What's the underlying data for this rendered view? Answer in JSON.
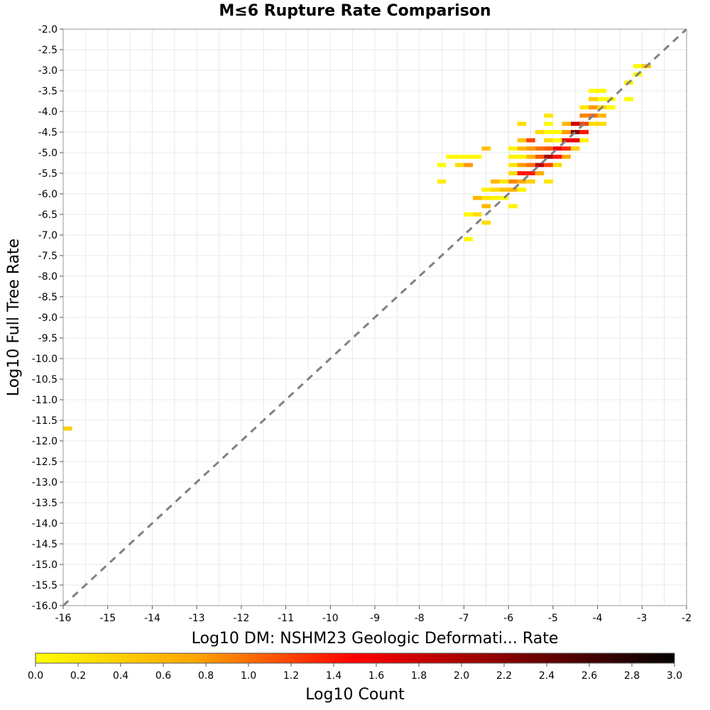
{
  "chart_data": {
    "type": "heatmap",
    "title": "M≤6 Rupture Rate Comparison",
    "xlabel": "Log10 DM: NSHM23 Geologic Deformati... Rate",
    "ylabel": "Log10 Full Tree Rate",
    "xlim": [
      -16,
      -2
    ],
    "ylim": [
      -16,
      -2
    ],
    "x_ticks": [
      "-16",
      "-15",
      "-14",
      "-13",
      "-12",
      "-11",
      "-10",
      "-9",
      "-8",
      "-7",
      "-6",
      "-5",
      "-4",
      "-3",
      "-2"
    ],
    "y_ticks": [
      "-2.0",
      "-2.5",
      "-3.0",
      "-3.5",
      "-4.0",
      "-4.5",
      "-5.0",
      "-5.5",
      "-6.0",
      "-6.5",
      "-7.0",
      "-7.5",
      "-8.0",
      "-8.5",
      "-9.0",
      "-9.5",
      "-10.0",
      "-10.5",
      "-11.0",
      "-11.5",
      "-12.0",
      "-12.5",
      "-13.0",
      "-13.5",
      "-14.0",
      "-14.5",
      "-15.0",
      "-15.5",
      "-16.0"
    ],
    "grid": true,
    "diagonal_reference_line": "dashed gray y=x",
    "bin_width": 0.2,
    "bin_height": 0.1,
    "colorbar": {
      "label": "Log10 Count",
      "range": [
        0,
        3
      ],
      "ticks": [
        "0.0",
        "0.2",
        "0.4",
        "0.6",
        "0.8",
        "1.0",
        "1.2",
        "1.4",
        "1.6",
        "1.8",
        "2.0",
        "2.2",
        "2.4",
        "2.6",
        "2.8",
        "3.0"
      ],
      "placement": "bottom",
      "colormap": [
        "#ffff00",
        "#ffa500",
        "#ff0000",
        "#800000",
        "#000000"
      ]
    },
    "cells": [
      {
        "x": -15.9,
        "y": -11.7,
        "v": 0.4
      },
      {
        "x": -7.5,
        "y": -5.7,
        "v": 0.15
      },
      {
        "x": -7.5,
        "y": -5.3,
        "v": 0.05
      },
      {
        "x": -7.3,
        "y": -5.1,
        "v": 0.05
      },
      {
        "x": -7.1,
        "y": -5.1,
        "v": 0.05
      },
      {
        "x": -7.1,
        "y": -5.3,
        "v": 0.3
      },
      {
        "x": -6.9,
        "y": -5.1,
        "v": 0.05
      },
      {
        "x": -6.9,
        "y": -5.3,
        "v": 0.8
      },
      {
        "x": -6.7,
        "y": -5.1,
        "v": 0.05
      },
      {
        "x": -6.5,
        "y": -4.9,
        "v": 0.5
      },
      {
        "x": -6.9,
        "y": -6.5,
        "v": 0.05
      },
      {
        "x": -6.9,
        "y": -7.1,
        "v": 0.05
      },
      {
        "x": -6.7,
        "y": -6.1,
        "v": 0.6
      },
      {
        "x": -6.7,
        "y": -6.5,
        "v": 0.3
      },
      {
        "x": -6.5,
        "y": -5.9,
        "v": 0.1
      },
      {
        "x": -6.5,
        "y": -6.1,
        "v": 0.2
      },
      {
        "x": -6.5,
        "y": -6.3,
        "v": 0.6
      },
      {
        "x": -6.5,
        "y": -6.7,
        "v": 0.3
      },
      {
        "x": -6.3,
        "y": -5.7,
        "v": 0.6
      },
      {
        "x": -6.3,
        "y": -5.9,
        "v": 0.3
      },
      {
        "x": -6.3,
        "y": -6.1,
        "v": 0.1
      },
      {
        "x": -6.1,
        "y": -5.7,
        "v": 0.2
      },
      {
        "x": -6.1,
        "y": -5.9,
        "v": 0.5
      },
      {
        "x": -6.1,
        "y": -6.1,
        "v": 0.05
      },
      {
        "x": -5.9,
        "y": -5.7,
        "v": 0.9
      },
      {
        "x": -5.9,
        "y": -5.9,
        "v": 0.6
      },
      {
        "x": -5.9,
        "y": -6.3,
        "v": 0.1
      },
      {
        "x": -5.9,
        "y": -5.5,
        "v": 0.3
      },
      {
        "x": -5.9,
        "y": -5.3,
        "v": 0.2
      },
      {
        "x": -5.9,
        "y": -5.1,
        "v": 0.1
      },
      {
        "x": -5.9,
        "y": -4.9,
        "v": 0.1
      },
      {
        "x": -5.7,
        "y": -4.3,
        "v": 0.3
      },
      {
        "x": -5.7,
        "y": -4.7,
        "v": 0.5
      },
      {
        "x": -5.7,
        "y": -4.9,
        "v": 0.6
      },
      {
        "x": -5.7,
        "y": -5.1,
        "v": 0.1
      },
      {
        "x": -5.7,
        "y": -5.3,
        "v": 0.8
      },
      {
        "x": -5.7,
        "y": -5.5,
        "v": 1.4
      },
      {
        "x": -5.7,
        "y": -5.7,
        "v": 0.7
      },
      {
        "x": -5.7,
        "y": -5.9,
        "v": 0.1
      },
      {
        "x": -5.5,
        "y": -4.7,
        "v": 1.2
      },
      {
        "x": -5.5,
        "y": -4.9,
        "v": 0.8
      },
      {
        "x": -5.5,
        "y": -5.1,
        "v": 0.6
      },
      {
        "x": -5.5,
        "y": -5.3,
        "v": 1.0
      },
      {
        "x": -5.5,
        "y": -5.5,
        "v": 1.4
      },
      {
        "x": -5.5,
        "y": -5.7,
        "v": 0.4
      },
      {
        "x": -5.3,
        "y": -4.5,
        "v": 0.3
      },
      {
        "x": -5.3,
        "y": -4.9,
        "v": 1.0
      },
      {
        "x": -5.3,
        "y": -5.1,
        "v": 1.1
      },
      {
        "x": -5.3,
        "y": -5.3,
        "v": 1.9
      },
      {
        "x": -5.3,
        "y": -5.5,
        "v": 0.7
      },
      {
        "x": -5.1,
        "y": -4.1,
        "v": 0.2
      },
      {
        "x": -5.1,
        "y": -4.3,
        "v": 0.05
      },
      {
        "x": -5.1,
        "y": -4.5,
        "v": 0.05
      },
      {
        "x": -5.1,
        "y": -4.7,
        "v": 0.3
      },
      {
        "x": -5.1,
        "y": -4.9,
        "v": 1.1
      },
      {
        "x": -5.1,
        "y": -5.1,
        "v": 2.0
      },
      {
        "x": -5.1,
        "y": -5.3,
        "v": 1.2
      },
      {
        "x": -5.1,
        "y": -5.7,
        "v": 0.2
      },
      {
        "x": -4.9,
        "y": -4.5,
        "v": 0.05
      },
      {
        "x": -4.9,
        "y": -4.7,
        "v": 0.05
      },
      {
        "x": -4.9,
        "y": -4.9,
        "v": 1.6
      },
      {
        "x": -4.9,
        "y": -5.1,
        "v": 1.4
      },
      {
        "x": -4.9,
        "y": -5.3,
        "v": 0.3
      },
      {
        "x": -4.7,
        "y": -4.3,
        "v": 0.6
      },
      {
        "x": -4.7,
        "y": -4.5,
        "v": 0.8
      },
      {
        "x": -4.7,
        "y": -4.7,
        "v": 1.6
      },
      {
        "x": -4.7,
        "y": -4.9,
        "v": 1.3
      },
      {
        "x": -4.7,
        "y": -5.1,
        "v": 0.7
      },
      {
        "x": -4.5,
        "y": -4.3,
        "v": 1.8
      },
      {
        "x": -4.5,
        "y": -4.5,
        "v": 2.2
      },
      {
        "x": -4.5,
        "y": -4.7,
        "v": 1.6
      },
      {
        "x": -4.5,
        "y": -4.9,
        "v": 0.4
      },
      {
        "x": -4.3,
        "y": -4.1,
        "v": 0.9
      },
      {
        "x": -4.3,
        "y": -4.3,
        "v": 1.2
      },
      {
        "x": -4.3,
        "y": -4.5,
        "v": 1.4
      },
      {
        "x": -4.3,
        "y": -4.7,
        "v": 0.1
      },
      {
        "x": -4.3,
        "y": -3.9,
        "v": 0.2
      },
      {
        "x": -4.1,
        "y": -3.5,
        "v": 0.05
      },
      {
        "x": -4.1,
        "y": -3.7,
        "v": 0.4
      },
      {
        "x": -4.1,
        "y": -3.9,
        "v": 0.8
      },
      {
        "x": -4.1,
        "y": -4.1,
        "v": 1.0
      },
      {
        "x": -4.1,
        "y": -4.3,
        "v": 0.3
      },
      {
        "x": -3.9,
        "y": -3.5,
        "v": 0.05
      },
      {
        "x": -3.9,
        "y": -3.7,
        "v": 0.05
      },
      {
        "x": -3.9,
        "y": -3.9,
        "v": 0.3
      },
      {
        "x": -3.9,
        "y": -4.1,
        "v": 0.6
      },
      {
        "x": -3.9,
        "y": -4.3,
        "v": 0.3
      },
      {
        "x": -3.7,
        "y": -3.7,
        "v": 0.05
      },
      {
        "x": -3.7,
        "y": -3.9,
        "v": 0.05
      },
      {
        "x": -3.3,
        "y": -3.3,
        "v": 0.1
      },
      {
        "x": -3.3,
        "y": -3.7,
        "v": 0.05
      },
      {
        "x": -3.1,
        "y": -2.9,
        "v": 0.05
      },
      {
        "x": -3.1,
        "y": -3.1,
        "v": 0.05
      },
      {
        "x": -2.9,
        "y": -2.9,
        "v": 0.5
      }
    ]
  }
}
